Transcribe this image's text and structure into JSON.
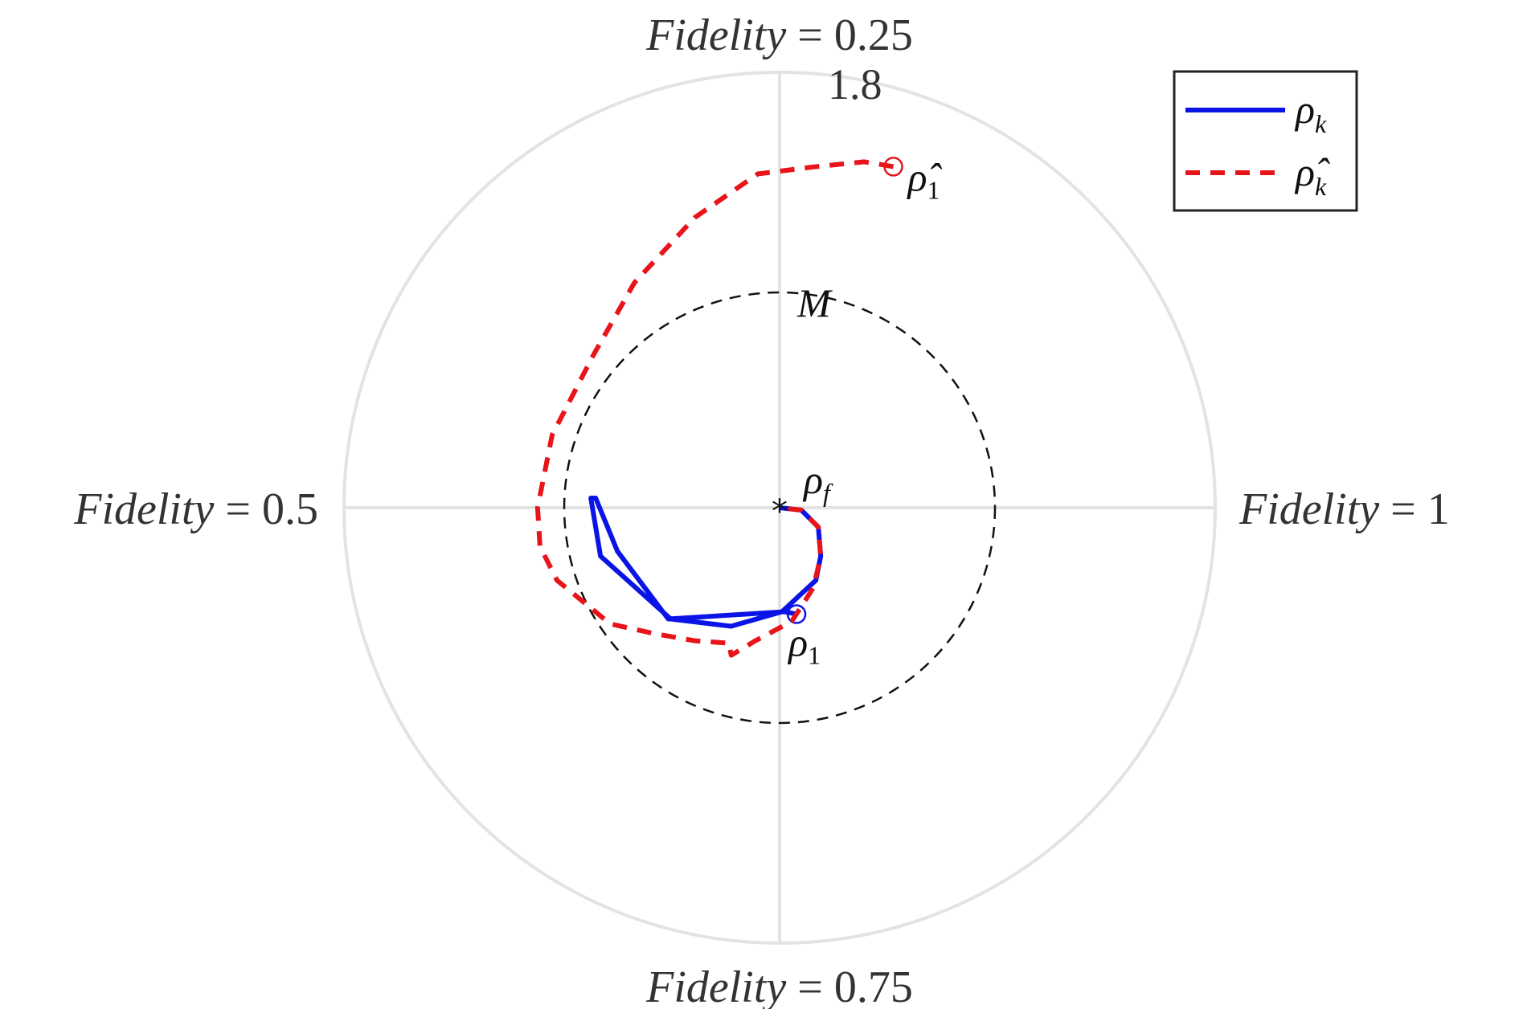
{
  "chart_data": {
    "type": "polar",
    "angular_labels": [
      {
        "name": "Fidelity",
        "value": "0.25",
        "direction": "top"
      },
      {
        "name": "Fidelity",
        "value": "1",
        "direction": "right"
      },
      {
        "name": "Fidelity",
        "value": "0.75",
        "direction": "bottom"
      },
      {
        "name": "Fidelity",
        "value": "0.5",
        "direction": "left"
      }
    ],
    "equals_sign": "=",
    "rlim": [
      0,
      1.8
    ],
    "rtick_label": "1.8",
    "reference_circle": {
      "label": "M",
      "r": 0.89,
      "style": "black dashed"
    },
    "center_marker": {
      "symbol": "*",
      "label": "ρ",
      "sub": "f"
    },
    "grid": true,
    "series": [
      {
        "name": "ρ",
        "sub": "k",
        "color": "#0a14e6",
        "dash": "solid",
        "start_label": {
          "main": "ρ",
          "sub": "1"
        },
        "points": [
          [
            0.07,
            -0.44
          ],
          [
            0.02,
            -0.43
          ],
          [
            -0.46,
            -0.46
          ],
          [
            -0.67,
            -0.18
          ],
          [
            -0.76,
            0.04
          ],
          [
            -0.78,
            0.04
          ],
          [
            -0.74,
            -0.2
          ],
          [
            -0.45,
            -0.46
          ],
          [
            -0.2,
            -0.49
          ],
          [
            0.01,
            -0.43
          ],
          [
            0.15,
            -0.3
          ],
          [
            0.17,
            -0.2
          ],
          [
            0.16,
            -0.08
          ],
          [
            0.09,
            -0.01
          ],
          [
            0.0,
            0.0
          ]
        ]
      },
      {
        "name": "ρ̂",
        "sub": "k",
        "color": "#e8141a",
        "dash": "dashed",
        "start_label": {
          "main": "ρ̂",
          "sub": "1"
        },
        "points": [
          [
            0.47,
            1.41
          ],
          [
            0.35,
            1.43
          ],
          [
            0.15,
            1.41
          ],
          [
            -0.09,
            1.38
          ],
          [
            -0.35,
            1.2
          ],
          [
            -0.6,
            0.93
          ],
          [
            -0.77,
            0.63
          ],
          [
            -0.94,
            0.3
          ],
          [
            -1.0,
            0.0
          ],
          [
            -0.99,
            -0.16
          ],
          [
            -0.92,
            -0.3
          ],
          [
            -0.7,
            -0.48
          ],
          [
            -0.52,
            -0.52
          ],
          [
            -0.35,
            -0.55
          ],
          [
            -0.21,
            -0.56
          ],
          [
            -0.2,
            -0.61
          ],
          [
            -0.1,
            -0.55
          ],
          [
            0.05,
            -0.47
          ],
          [
            0.14,
            -0.33
          ],
          [
            0.17,
            -0.2
          ],
          [
            0.16,
            -0.08
          ],
          [
            0.09,
            -0.01
          ],
          [
            0.0,
            0.0
          ]
        ]
      }
    ],
    "legend_position": "top-right"
  }
}
